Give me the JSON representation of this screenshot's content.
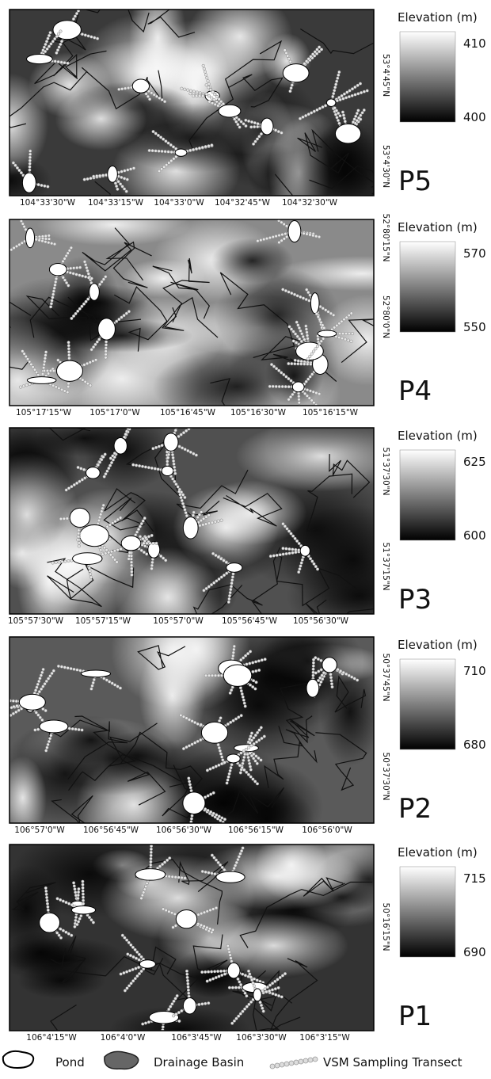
{
  "panels": [
    {
      "label": "P5",
      "legend_title": "Elevation (m)",
      "max": 410,
      "min": 400,
      "x_ticks": [
        "104°33'30\"W",
        "104°33'15\"W",
        "104°33'0\"W",
        "104°32'45\"W",
        "104°32'30\"W"
      ],
      "y_ticks": [
        "53°4'45\"N",
        "53°4'30\"N"
      ]
    },
    {
      "label": "P4",
      "legend_title": "Elevation (m)",
      "max": 570,
      "min": 550,
      "x_ticks": [
        "105°17'15\"W",
        "105°17'0\"W",
        "105°16'45\"W",
        "105°16'30\"W",
        "105°16'15\"W"
      ],
      "y_ticks": [
        "52°80'15\"N",
        "52°80'0\"N"
      ]
    },
    {
      "label": "P3",
      "legend_title": "Elevation (m)",
      "max": 625,
      "min": 600,
      "x_ticks": [
        "105°57'30\"W",
        "105°57'15\"W",
        "105°57'0\"W",
        "105°56'45\"W",
        "105°56'30\"W"
      ],
      "y_ticks": [
        "51°37'30\"N",
        "51°37'15\"N"
      ]
    },
    {
      "label": "P2",
      "legend_title": "Elevation (m)",
      "max": 710,
      "min": 680,
      "x_ticks": [
        "106°57'0\"W",
        "106°56'45\"W",
        "106°56'30\"W",
        "106°56'15\"W",
        "106°56'0\"W"
      ],
      "y_ticks": [
        "50°37'45\"N",
        "50°37'30\"N"
      ]
    },
    {
      "label": "P1",
      "legend_title": "Elevation (m)",
      "max": 715,
      "min": 690,
      "x_ticks": [
        "106°4'15\"W",
        "106°4'0\"W",
        "106°3'45\"W",
        "106°3'30\"W",
        "106°3'15\"W"
      ],
      "y_ticks": [
        "50°16'15\"N"
      ]
    }
  ],
  "legend": {
    "pond": "Pond",
    "basin": "Drainage Basin",
    "transect": "VSM Sampling Transect"
  }
}
